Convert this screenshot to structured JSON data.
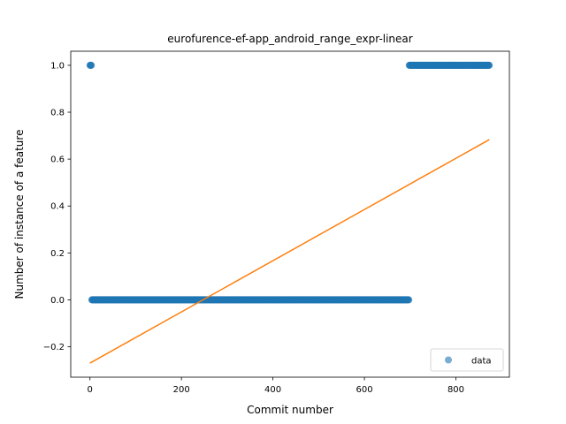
{
  "chart_data": {
    "type": "scatter",
    "title": "eurofurence-ef-app_android_range_expr-linear",
    "xlabel": "Commit number",
    "ylabel": "Number of instance of a feature",
    "xlim": [
      -42,
      917
    ],
    "ylim": [
      -0.33,
      1.06
    ],
    "x_ticks": [
      0,
      200,
      400,
      600,
      800
    ],
    "x_tick_labels": [
      "0",
      "200",
      "400",
      "600",
      "800"
    ],
    "y_ticks": [
      -0.2,
      0.0,
      0.2,
      0.4,
      0.6,
      0.8,
      1.0
    ],
    "y_tick_labels": [
      "−0.2",
      "0.0",
      "0.2",
      "0.4",
      "0.6",
      "0.8",
      "1.0"
    ],
    "grid": false,
    "legend_position": "lower-right",
    "series": [
      {
        "name": "data",
        "kind": "scatter",
        "color": "#1f77b4",
        "segments": [
          {
            "x_from": 0,
            "x_to": 3,
            "y": 1
          },
          {
            "x_from": 4,
            "x_to": 697,
            "y": 0
          },
          {
            "x_from": 698,
            "x_to": 873,
            "y": 1
          }
        ]
      },
      {
        "kind": "line",
        "color": "#ff7f0e",
        "x": [
          0,
          873
        ],
        "y": [
          -0.27,
          0.683
        ]
      }
    ]
  }
}
